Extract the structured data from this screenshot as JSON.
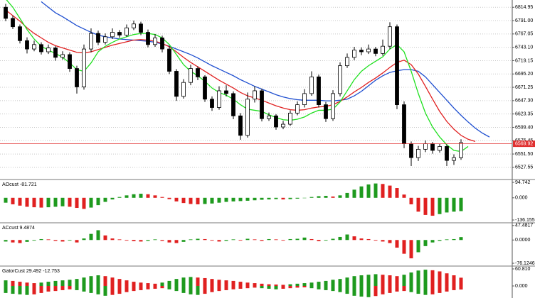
{
  "chart_data": [
    {
      "type": "candlestick",
      "open": [
        6815,
        6795,
        6780,
        6755,
        6740,
        6748,
        6735,
        6742,
        6725,
        6730,
        6705,
        6672,
        6740,
        6768,
        6752,
        6762,
        6770,
        6765,
        6778,
        6785,
        6770,
        6748,
        6760,
        6740,
        6700,
        6655,
        6680,
        6705,
        6690,
        6650,
        6635,
        6665,
        6660,
        6620,
        6585,
        6650,
        6665,
        6615,
        6620,
        6600,
        6605,
        6625,
        6640,
        6660,
        6690,
        6640,
        6615,
        6660,
        6710,
        6725,
        6738,
        6735,
        6740,
        6732,
        6745,
        6780,
        6640,
        6570,
        6545,
        6560,
        6570,
        6558,
        6565,
        6540,
        6545
      ],
      "high": [
        6821,
        6800,
        6784,
        6761,
        6755,
        6752,
        6748,
        6745,
        6736,
        6734,
        6710,
        6748,
        6777,
        6773,
        6768,
        6777,
        6774,
        6784,
        6791,
        6789,
        6775,
        6767,
        6764,
        6745,
        6704,
        6686,
        6712,
        6709,
        6693,
        6655,
        6673,
        6675,
        6664,
        6625,
        6662,
        6673,
        6669,
        6626,
        6623,
        6611,
        6630,
        6646,
        6668,
        6700,
        6694,
        6645,
        6666,
        6716,
        6732,
        6744,
        6743,
        6748,
        6744,
        6757,
        6788,
        6784,
        6646,
        6574,
        6566,
        6576,
        6573,
        6570,
        6569,
        6551,
        6578
      ],
      "low": [
        6790,
        6776,
        6750,
        6732,
        6736,
        6730,
        6731,
        6719,
        6721,
        6699,
        6660,
        6667,
        6734,
        6747,
        6748,
        6758,
        6760,
        6762,
        6774,
        6765,
        6743,
        6744,
        6734,
        6695,
        6647,
        6651,
        6675,
        6684,
        6645,
        6629,
        6631,
        6655,
        6614,
        6577,
        6581,
        6644,
        6610,
        6611,
        6595,
        6596,
        6602,
        6621,
        6635,
        6656,
        6635,
        6609,
        6611,
        6655,
        6706,
        6720,
        6729,
        6731,
        6727,
        6728,
        6740,
        6632,
        6562,
        6530,
        6539,
        6555,
        6552,
        6554,
        6530,
        6532,
        6541
      ],
      "close": [
        6795,
        6780,
        6755,
        6740,
        6748,
        6735,
        6742,
        6725,
        6730,
        6705,
        6672,
        6740,
        6768,
        6752,
        6762,
        6770,
        6765,
        6778,
        6785,
        6770,
        6748,
        6760,
        6740,
        6700,
        6655,
        6680,
        6705,
        6690,
        6650,
        6635,
        6665,
        6660,
        6620,
        6585,
        6650,
        6665,
        6615,
        6620,
        6600,
        6605,
        6625,
        6640,
        6660,
        6690,
        6640,
        6615,
        6660,
        6710,
        6725,
        6738,
        6735,
        6740,
        6732,
        6745,
        6780,
        6640,
        6570,
        6545,
        6560,
        6570,
        6558,
        6565,
        6540,
        6545,
        6572
      ],
      "up_color": "#ffffff",
      "down_color": "#000000",
      "series": [
        {
          "color": "#1f4fd0",
          "values": [
            null,
            null,
            null,
            null,
            null,
            6825,
            6815,
            6805,
            6798,
            6790,
            6782,
            6776,
            6770,
            6765,
            6762,
            6760,
            6758,
            6757,
            6756,
            6755,
            6754,
            6752,
            6749,
            6745,
            6740,
            6735,
            6730,
            6724,
            6717,
            6710,
            6704,
            6698,
            6692,
            6685,
            6679,
            6673,
            6668,
            6663,
            6658,
            6654,
            6651,
            6649,
            6648,
            6648,
            6648,
            6647,
            6647,
            6648,
            6650,
            6656,
            6664,
            6674,
            6684,
            6692,
            6698,
            6701,
            6703,
            6703,
            6700,
            6690,
            6676,
            6662,
            6648,
            6634,
            6621,
            6609,
            6598,
            6589,
            6582
          ]
        },
        {
          "color": "#e02020",
          "values": [
            6810,
            6800,
            6790,
            6778,
            6768,
            6760,
            6752,
            6746,
            6742,
            6738,
            6734,
            6733,
            6735,
            6739,
            6743,
            6747,
            6750,
            6753,
            6756,
            6757,
            6756,
            6754,
            6750,
            6744,
            6735,
            6725,
            6716,
            6708,
            6700,
            6692,
            6684,
            6677,
            6670,
            6662,
            6656,
            6652,
            6648,
            6643,
            6638,
            6634,
            6631,
            6630,
            6631,
            6634,
            6636,
            6637,
            6640,
            6646,
            6654,
            6663,
            6671,
            6680,
            6688,
            6697,
            6707,
            6716,
            6720,
            6712,
            6695,
            6673,
            6650,
            6628,
            6610,
            6596,
            6585,
            6578,
            6574,
            null,
            null
          ]
        },
        {
          "color": "#20e020",
          "values": [
            6830,
            6815,
            6795,
            6775,
            6758,
            6745,
            6738,
            6732,
            6725,
            6715,
            6703,
            6700,
            6715,
            6735,
            6745,
            6752,
            6758,
            6762,
            6766,
            6768,
            6768,
            6766,
            6760,
            6748,
            6730,
            6712,
            6700,
            6692,
            6682,
            6670,
            6662,
            6657,
            6650,
            6640,
            6632,
            6630,
            6628,
            6622,
            6617,
            6613,
            6612,
            6614,
            6618,
            6625,
            6630,
            6630,
            6632,
            6645,
            6665,
            6685,
            6700,
            6710,
            6718,
            6726,
            6740,
            6748,
            6735,
            6700,
            6660,
            6625,
            6600,
            6582,
            6568,
            6558,
            6556,
            6565,
            null,
            null,
            null
          ]
        }
      ],
      "price_line": {
        "value": 6569.92,
        "color": "#e03030"
      },
      "ylim": [
        6507,
        6828
      ],
      "yticks": [
        6814.95,
        {
          "value": 6791,
          "label": "6791.00"
        },
        6767.05,
        {
          "value": 6743.1,
          "label": "6743.10"
        },
        6719.15,
        {
          "value": 6695.2,
          "label": "6695.20"
        },
        6671.25,
        {
          "value": 6647.3,
          "label": "6647.30"
        },
        6623.35,
        {
          "value": 6599.4,
          "label": "6599.40"
        },
        6575.45,
        {
          "value": 6551.5,
          "label": "6551.50"
        },
        6527.55
      ],
      "grid": true
    },
    {
      "type": "bar",
      "title": "AOcust -81.721",
      "values": [
        -30,
        -40,
        -48,
        -55,
        -58,
        -60,
        -58,
        -55,
        -52,
        -55,
        -62,
        -68,
        -60,
        -45,
        -25,
        -10,
        5,
        15,
        22,
        25,
        22,
        15,
        5,
        -8,
        -22,
        -32,
        -38,
        -40,
        -38,
        -35,
        -30,
        -25,
        -22,
        -20,
        -18,
        -15,
        -12,
        -10,
        -8,
        -10,
        -8,
        -5,
        -2,
        5,
        10,
        12,
        8,
        15,
        30,
        50,
        70,
        82,
        88,
        85,
        75,
        60,
        20,
        -40,
        -85,
        -105,
        -110,
        -100,
        -90,
        -85,
        -81.721
      ],
      "up_color": "#1e9a1e",
      "down_color": "#e02020",
      "ylim": [
        -149,
        108
      ],
      "yticks": [
        94.742,
        {
          "value": 0,
          "label": "0.000"
        },
        -136.155
      ]
    },
    {
      "type": "bar",
      "title": "ACcust 9.4874",
      "values": [
        -5,
        -8,
        -10,
        -6,
        -2,
        3,
        2,
        -3,
        -5,
        -2,
        -8,
        5,
        20,
        32,
        15,
        5,
        2,
        -2,
        -4,
        -5,
        -3,
        2,
        -3,
        -8,
        -10,
        -6,
        2,
        4,
        3,
        -2,
        -5,
        -3,
        2,
        -2,
        4,
        2,
        -3,
        3,
        2,
        -2,
        3,
        4,
        8,
        3,
        -4,
        -2,
        4,
        10,
        18,
        12,
        5,
        3,
        -2,
        -5,
        -10,
        -25,
        -45,
        -60,
        -40,
        -20,
        -8,
        -3,
        2,
        3,
        9.4874
      ],
      "up_color": "#1e9a1e",
      "down_color": "#e02020",
      "ylim": [
        -83,
        54
      ],
      "yticks": [
        47.4817,
        {
          "value": 0,
          "label": "0.0000"
        },
        -76.1246
      ]
    },
    {
      "type": "bar",
      "title": "GatorCust 29.492 -12.753",
      "series": [
        {
          "values": [
            20,
            18,
            15,
            12,
            10,
            12,
            15,
            18,
            20,
            22,
            25,
            30,
            35,
            38,
            35,
            30,
            25,
            20,
            15,
            12,
            10,
            8,
            12,
            18,
            25,
            30,
            32,
            30,
            28,
            25,
            22,
            20,
            18,
            15,
            12,
            10,
            8,
            6,
            5,
            4,
            6,
            8,
            10,
            12,
            15,
            18,
            22,
            25,
            30,
            35,
            38,
            40,
            42,
            40,
            38,
            35,
            40,
            48,
            55,
            58,
            56,
            52,
            45,
            38,
            29.492
          ]
        },
        {
          "values": [
            -25,
            -28,
            -30,
            -32,
            -30,
            -25,
            -20,
            -18,
            -15,
            -12,
            -15,
            -20,
            -25,
            -30,
            -35,
            -32,
            -28,
            -22,
            -18,
            -15,
            -12,
            -10,
            -8,
            -12,
            -18,
            -25,
            -30,
            -32,
            -28,
            -22,
            -18,
            -15,
            -12,
            -10,
            -8,
            -6,
            -8,
            -10,
            -12,
            -10,
            -8,
            -6,
            -5,
            -8,
            -12,
            -15,
            -18,
            -22,
            -28,
            -35,
            -38,
            -40,
            -36,
            -30,
            -25,
            -20,
            -18,
            -22,
            -28,
            -32,
            -30,
            -25,
            -20,
            -15,
            -12.753
          ]
        }
      ],
      "up_color": "#1e9a1e",
      "down_color": "#e02020",
      "ylim": [
        -43,
        68.4
      ],
      "yticks": [
        {
          "value": 60.81,
          "label": "60.810"
        },
        {
          "value": 0,
          "label": "0.000"
        }
      ]
    }
  ]
}
